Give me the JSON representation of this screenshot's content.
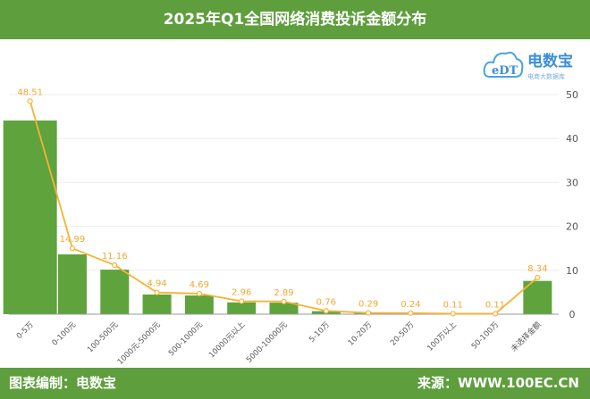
{
  "header": {
    "title": "2025年Q1全国网络消费投诉金额分布"
  },
  "footer": {
    "left": "图表编制：电数宝",
    "right": "来源：WWW.100EC.CN"
  },
  "logo": {
    "text": "电数宝",
    "sub": "电商大数据库",
    "mark": "eDT"
  },
  "colors": {
    "brand": "#5e9e3d",
    "bar": "#5fa33d",
    "line": "#f5b335",
    "label": "#f0a830"
  },
  "chart_data": {
    "type": "bar+line",
    "categories": [
      "0-5万",
      "0-100元",
      "100-500元",
      "1000元-5000元",
      "500-1000元",
      "10000元以上",
      "5000-10000元",
      "5-10万",
      "10-20万",
      "20-50万",
      "100万以上",
      "50-100万",
      "未选择金额"
    ],
    "values": [
      48.51,
      14.99,
      11.16,
      4.94,
      4.69,
      2.96,
      2.89,
      0.76,
      0.29,
      0.24,
      0.11,
      0.11,
      8.34
    ],
    "y_ticks": [
      0,
      10,
      20,
      30,
      40,
      50
    ],
    "ylim": [
      0,
      50
    ],
    "grid": true
  }
}
